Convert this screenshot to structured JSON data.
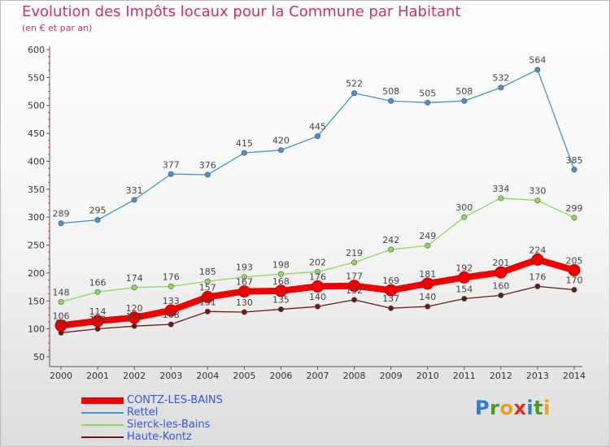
{
  "title": "Evolution des Impôts locaux pour la Commune par Habitant",
  "subtitle": "(en € et par an)",
  "logo": {
    "letters": [
      {
        "ch": "P",
        "color": "#2f7fd0"
      },
      {
        "ch": "r",
        "color": "#4a9a2a"
      },
      {
        "ch": "o",
        "color": "#e8a020"
      },
      {
        "ch": "x",
        "color": "#d83020"
      },
      {
        "ch": "i",
        "color": "#2f7fd0"
      },
      {
        "ch": "t",
        "color": "#4a9a2a"
      },
      {
        "ch": "i",
        "color": "#e8a020"
      }
    ]
  },
  "chart_data": {
    "type": "line",
    "x": [
      "2000",
      "2001",
      "2002",
      "2003",
      "2004",
      "2005",
      "2006",
      "2007",
      "2008",
      "2009",
      "2010",
      "2011",
      "2012",
      "2013",
      "2014"
    ],
    "ylim": [
      50,
      600
    ],
    "yticks": [
      50,
      100,
      150,
      200,
      250,
      300,
      350,
      400,
      450,
      500,
      550,
      600
    ],
    "grid": false,
    "legend_position": "bottom-left",
    "series": [
      {
        "name": "Rettel",
        "color": "#4a90cc",
        "values": [
          289,
          295,
          331,
          377,
          376,
          415,
          420,
          445,
          522,
          508,
          505,
          508,
          532,
          564,
          385
        ]
      },
      {
        "name": "Sierck-les-Bains",
        "color": "#8fd860",
        "values": [
          148,
          166,
          174,
          176,
          185,
          193,
          198,
          202,
          219,
          242,
          249,
          300,
          334,
          330,
          299
        ]
      },
      {
        "name": "Haute-Kontz",
        "color": "#6b1a1a",
        "values": [
          93,
          100,
          105,
          108,
          131,
          130,
          135,
          140,
          152,
          137,
          140,
          154,
          160,
          176,
          170
        ]
      },
      {
        "name": "CONTZ-LES-BAINS",
        "color": "#ee0000",
        "values": [
          106,
          114,
          120,
          133,
          157,
          167,
          168,
          176,
          177,
          169,
          181,
          192,
          201,
          224,
          205
        ]
      }
    ]
  }
}
